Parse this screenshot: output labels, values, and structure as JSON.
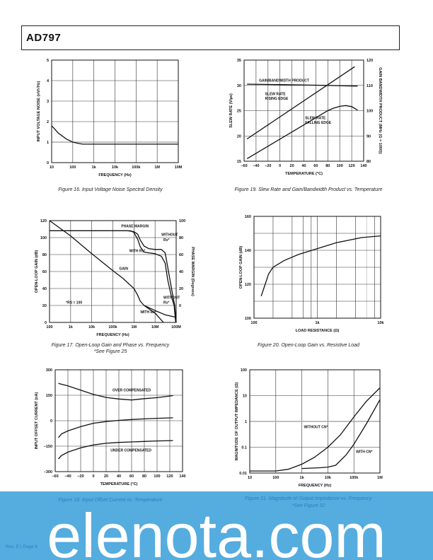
{
  "header": {
    "title": "AD797"
  },
  "footer": {
    "page": "Rev. E | Page 8"
  },
  "watermark": {
    "text": "elenota.com",
    "band_color": "#55acdf"
  },
  "captions": {
    "fig16": "Figure 16. Input Voltage Noise Spectral Density",
    "fig19": "Figure 19. Slew Rate and Gain/Bandwidth Product vs. Temperature",
    "fig17": "Figure 17. Open-Loop Gain and Phase vs. Frequency",
    "fig17_note": "*See Figure 25",
    "fig20": "Figure 20. Open-Loop Gain vs. Resistive Load",
    "fig18": "Figure 18. Input Offset Current vs. Temperature",
    "fig21": "Figure 21. Magnitude of Output Impedance vs. Frequency",
    "fig21_note": "*See Figure 32"
  },
  "chart_data": [
    {
      "id": "fig16",
      "type": "line",
      "title": "Figure 16. Input Voltage Noise Spectral Density",
      "xlabel": "FREQUENCY (Hz)",
      "ylabel": "INPUT VOLTAGE NOISE (nV/√Hz)",
      "xlog": true,
      "xlim": [
        10,
        10000000
      ],
      "ylim": [
        0,
        5
      ],
      "grid": true,
      "xticks": [
        [
          10,
          "10"
        ],
        [
          100,
          "100"
        ],
        [
          1000,
          "1k"
        ],
        [
          10000,
          "10k"
        ],
        [
          100000,
          "100k"
        ],
        [
          1000000,
          "1M"
        ],
        [
          10000000,
          "10M"
        ]
      ],
      "yticks": [
        [
          0,
          "0"
        ],
        [
          1,
          "1"
        ],
        [
          2,
          "2"
        ],
        [
          3,
          "3"
        ],
        [
          4,
          "4"
        ],
        [
          5,
          "5"
        ]
      ],
      "series": [
        {
          "axis": "left",
          "points": [
            [
              10,
              1.8
            ],
            [
              15,
              1.6
            ],
            [
              20,
              1.45
            ],
            [
              50,
              1.15
            ],
            [
              100,
              1.0
            ],
            [
              200,
              0.93
            ],
            [
              300,
              0.9
            ],
            [
              1000,
              0.9
            ],
            [
              10000000,
              0.9
            ]
          ]
        }
      ],
      "annotations": []
    },
    {
      "id": "fig19",
      "type": "line",
      "title": "Figure 19. Slew Rate and Gain/Bandwidth Product vs. Temperature",
      "xlabel": "TEMPERATURE (°C)",
      "ylabel": "SLEW RATE (V/µs)",
      "y2label": "GAIN BANDWIDTH PRODUCT (MHz (G = 1000))",
      "xlim": [
        -60,
        140
      ],
      "ylim": [
        15,
        35
      ],
      "y2lim": [
        80,
        120
      ],
      "grid": true,
      "xticks": [
        [
          -60,
          "−60"
        ],
        [
          -40,
          "−40"
        ],
        [
          -20,
          "−20"
        ],
        [
          0,
          "0"
        ],
        [
          20,
          "20"
        ],
        [
          40,
          "40"
        ],
        [
          60,
          "60"
        ],
        [
          80,
          "80"
        ],
        [
          100,
          "100"
        ],
        [
          120,
          "120"
        ],
        [
          140,
          "140"
        ]
      ],
      "yticks": [
        [
          15,
          "15"
        ],
        [
          20,
          "20"
        ],
        [
          25,
          "25"
        ],
        [
          30,
          "30"
        ],
        [
          35,
          "35"
        ]
      ],
      "y2ticks": [
        [
          80,
          "80"
        ],
        [
          90,
          "90"
        ],
        [
          100,
          "100"
        ],
        [
          110,
          "110"
        ],
        [
          120,
          "120"
        ]
      ],
      "series": [
        {
          "name": "SLEW RATE RISING EDGE",
          "axis": "left",
          "points": [
            [
              -55,
              19.4
            ],
            [
              125,
              33.7
            ]
          ]
        },
        {
          "name": "SLEW RATE FALLING EDGE",
          "axis": "left",
          "points": [
            [
              -55,
              15.5
            ],
            [
              80,
              25
            ],
            [
              90,
              25.5
            ],
            [
              100,
              25.85
            ],
            [
              110,
              26
            ],
            [
              120,
              25.8
            ],
            [
              130,
              25.1
            ]
          ]
        },
        {
          "name": "GAIN/BANDWIDTH PRODUCT",
          "axis": "right",
          "points": [
            [
              -55,
              110.5
            ],
            [
              0,
              110.3
            ],
            [
              80,
              110
            ],
            [
              130,
              109.7
            ]
          ]
        }
      ],
      "annotations": [
        [
          -35,
          30.7,
          "GAIN/BANDWIDTH PRODUCT"
        ],
        [
          -25,
          28.1,
          "SLEW RATE"
        ],
        [
          -25,
          27.2,
          "RISING EDGE"
        ],
        [
          42,
          23.3,
          "SLEW RATE"
        ],
        [
          42,
          22.4,
          "FALLING EDGE"
        ]
      ]
    },
    {
      "id": "fig17",
      "type": "line",
      "title": "Figure 17. Open-Loop Gain and Phase vs. Frequency",
      "xlabel": "FREQUENCY (Hz)",
      "ylabel": "OPEN-LOOP GAIN (dB)",
      "y2label": "PHASE MARGIN (Degrees)",
      "xlog": true,
      "xlim": [
        100,
        100000000
      ],
      "ylim": [
        0,
        120
      ],
      "y2lim": [
        -20,
        100
      ],
      "grid": true,
      "xticks": [
        [
          100,
          "100"
        ],
        [
          1000,
          "1k"
        ],
        [
          10000,
          "10k"
        ],
        [
          100000,
          "100k"
        ],
        [
          1000000,
          "1M"
        ],
        [
          10000000,
          "10M"
        ],
        [
          100000000,
          "100M"
        ]
      ],
      "yticks": [
        [
          0,
          "0"
        ],
        [
          20,
          "20"
        ],
        [
          40,
          "40"
        ],
        [
          60,
          "60"
        ],
        [
          80,
          "80"
        ],
        [
          100,
          "100"
        ],
        [
          120,
          "120"
        ]
      ],
      "y2ticks": [
        [
          0,
          "0"
        ],
        [
          20,
          "20"
        ],
        [
          40,
          "40"
        ],
        [
          60,
          "60"
        ],
        [
          80,
          "80"
        ],
        [
          100,
          "100"
        ]
      ],
      "series": [
        {
          "name": "GAIN",
          "axis": "left",
          "points": [
            [
              100,
              120
            ],
            [
              1000,
              102
            ],
            [
              10000,
              81
            ],
            [
              100000,
              61
            ],
            [
              300000,
              52
            ],
            [
              1000000,
              40
            ],
            [
              1500000,
              32
            ],
            [
              2000000,
              25
            ],
            [
              3000000,
              20
            ]
          ]
        },
        {
          "name": "GAIN WITHOUT Rs*",
          "axis": "left",
          "points": [
            [
              3000000,
              20
            ],
            [
              10000000,
              14
            ],
            [
              30000000,
              9
            ],
            [
              100000000,
              6
            ]
          ]
        },
        {
          "name": "GAIN WITH Rs*",
          "axis": "left",
          "points": [
            [
              3000000,
              20
            ],
            [
              10000000,
              11
            ],
            [
              25000000,
              0
            ]
          ]
        },
        {
          "name": "PHASE MARGIN WITHOUT Rs*",
          "axis": "right",
          "points": [
            [
              100,
              88
            ],
            [
              500000,
              88
            ],
            [
              1000000,
              87
            ],
            [
              1500000,
              84
            ],
            [
              2000000,
              77
            ],
            [
              3000000,
              70
            ],
            [
              5000000,
              67
            ],
            [
              10000000,
              66
            ],
            [
              20000000,
              66
            ],
            [
              30000000,
              62
            ],
            [
              40000000,
              45
            ],
            [
              60000000,
              20
            ],
            [
              85000000,
              0
            ],
            [
              100000000,
              -20
            ]
          ]
        },
        {
          "name": "PHASE MARGIN WITH Rs*",
          "axis": "right",
          "points": [
            [
              100,
              88
            ],
            [
              700000,
              88
            ],
            [
              1000000,
              86
            ],
            [
              1500000,
              78
            ],
            [
              2000000,
              69
            ],
            [
              3000000,
              63
            ],
            [
              5000000,
              62
            ],
            [
              10000000,
              61
            ],
            [
              20000000,
              58
            ],
            [
              30000000,
              50
            ],
            [
              40000000,
              30
            ],
            [
              60000000,
              10
            ],
            [
              80000000,
              0
            ],
            [
              95000000,
              -20
            ]
          ]
        }
      ],
      "annotations": [
        [
          250000,
          112,
          "PHASE MARGIN"
        ],
        [
          20000000,
          102,
          "WITHOUT"
        ],
        [
          25000000,
          96,
          "Rs*"
        ],
        [
          600000,
          83,
          "WITH Rs*"
        ],
        [
          200000,
          62,
          "GAIN"
        ],
        [
          600,
          22,
          "*RS = 100"
        ],
        [
          25000000,
          28,
          "WITHOUT"
        ],
        [
          25000000,
          22,
          "Rs*"
        ],
        [
          2000000,
          11,
          "WITH Rs*"
        ]
      ]
    },
    {
      "id": "fig20",
      "type": "line",
      "title": "Figure 20. Open-Loop Gain vs. Resistive Load",
      "xlabel": "LOAD RESISTANCE (Ω)",
      "ylabel": "OPEN-LOOP GAIN (dB)",
      "xlog": true,
      "xlim": [
        100,
        10000
      ],
      "ylim": [
        100,
        160
      ],
      "grid": true,
      "xticks": [
        [
          100,
          "100"
        ],
        [
          1000,
          "1k"
        ],
        [
          10000,
          "10k"
        ]
      ],
      "yticks": [
        [
          100,
          "100"
        ],
        [
          120,
          "120"
        ],
        [
          140,
          "140"
        ],
        [
          160,
          "160"
        ]
      ],
      "series": [
        {
          "axis": "left",
          "points": [
            [
              130,
              113
            ],
            [
              150,
              120
            ],
            [
              170,
              126
            ],
            [
              200,
              130
            ],
            [
              300,
              134
            ],
            [
              500,
              137.5
            ],
            [
              1000,
              141
            ],
            [
              2000,
              144.5
            ],
            [
              5000,
              147.5
            ],
            [
              10000,
              148.5
            ]
          ]
        }
      ],
      "annotations": []
    },
    {
      "id": "fig18",
      "type": "line",
      "title": "Figure 18. Input Offset Current vs. Temperature",
      "xlabel": "TEMPERATURE (°C)",
      "ylabel": "INPUT OFFSET CURRENT (nA)",
      "xlim": [
        -60,
        140
      ],
      "ylim": [
        -300,
        300
      ],
      "grid": true,
      "xticks": [
        [
          -60,
          "−60"
        ],
        [
          -40,
          "−40"
        ],
        [
          -20,
          "−20"
        ],
        [
          0,
          "0"
        ],
        [
          20,
          "20"
        ],
        [
          40,
          "40"
        ],
        [
          60,
          "60"
        ],
        [
          80,
          "80"
        ],
        [
          100,
          "100"
        ],
        [
          120,
          "120"
        ],
        [
          140,
          "140"
        ]
      ],
      "yticks": [
        [
          -300,
          "−300"
        ],
        [
          -150,
          "−150"
        ],
        [
          0,
          "0"
        ],
        [
          150,
          "150"
        ],
        [
          300,
          "300"
        ]
      ],
      "series": [
        {
          "name": "OVER COMPENSATED",
          "axis": "left",
          "points": [
            [
              -55,
              220
            ],
            [
              -40,
              205
            ],
            [
              -20,
              180
            ],
            [
              0,
              155
            ],
            [
              20,
              137
            ],
            [
              40,
              128
            ],
            [
              60,
              122
            ],
            [
              80,
              130
            ],
            [
              100,
              136
            ],
            [
              125,
              148
            ]
          ]
        },
        {
          "axis": "left",
          "points": [
            [
              -55,
              -100
            ],
            [
              -50,
              -78
            ],
            [
              -40,
              -60
            ],
            [
              -20,
              -35
            ],
            [
              0,
              -15
            ],
            [
              20,
              -5
            ],
            [
              40,
              2
            ],
            [
              60,
              7
            ],
            [
              80,
              11
            ],
            [
              100,
              14
            ],
            [
              125,
              17
            ]
          ]
        },
        {
          "name": "UNDER COMPENSATED",
          "axis": "left",
          "points": [
            [
              -55,
              -225
            ],
            [
              -50,
              -205
            ],
            [
              -40,
              -185
            ],
            [
              -20,
              -160
            ],
            [
              0,
              -143
            ],
            [
              20,
              -133
            ],
            [
              40,
              -128
            ],
            [
              60,
              -125
            ],
            [
              80,
              -122
            ],
            [
              100,
              -119
            ],
            [
              125,
              -117
            ]
          ]
        }
      ],
      "annotations": [
        [
          30,
          172,
          "OVER COMPENSATED"
        ],
        [
          27,
          -182,
          "UNDER COMPENSATED"
        ]
      ]
    },
    {
      "id": "fig21",
      "type": "line",
      "title": "Figure 21. Magnitude of Output Impedance vs. Frequency",
      "xlabel": "FREQUENCY (Hz)",
      "ylabel": "MAGNITUDE OF OUTPUT IMPEDANCE (Ω)",
      "xlog": true,
      "ylog": true,
      "xlim": [
        10,
        1000000
      ],
      "ylim": [
        0.01,
        100
      ],
      "grid": true,
      "xticks": [
        [
          10,
          "10"
        ],
        [
          100,
          "100"
        ],
        [
          1000,
          "1k"
        ],
        [
          10000,
          "10k"
        ],
        [
          100000,
          "100k"
        ],
        [
          1000000,
          "1M"
        ]
      ],
      "yticks": [
        [
          0.01,
          "0.01"
        ],
        [
          0.1,
          "0.1"
        ],
        [
          1,
          "1"
        ],
        [
          10,
          "10"
        ],
        [
          100,
          "100"
        ]
      ],
      "series": [
        {
          "name": "WITHOUT CN*",
          "axis": "left",
          "points": [
            [
              10,
              0.012
            ],
            [
              100,
              0.012
            ],
            [
              300,
              0.014
            ],
            [
              1000,
              0.022
            ],
            [
              3000,
              0.04
            ],
            [
              10000,
              0.1
            ],
            [
              30000,
              0.3
            ],
            [
              100000,
              1.5
            ],
            [
              300000,
              6
            ],
            [
              1000000,
              20
            ]
          ]
        },
        {
          "name": "WITH CN*",
          "axis": "left",
          "points": [
            [
              1000,
              0.015
            ],
            [
              5000,
              0.016
            ],
            [
              10000,
              0.017
            ],
            [
              20000,
              0.02
            ],
            [
              50000,
              0.05
            ],
            [
              100000,
              0.13
            ],
            [
              300000,
              0.8
            ],
            [
              1000000,
              7
            ]
          ]
        }
      ],
      "annotations": [
        [
          1200,
          0.55,
          "WITHOUT CN*"
        ],
        [
          120000,
          0.06,
          "WITH CN*"
        ]
      ]
    }
  ]
}
